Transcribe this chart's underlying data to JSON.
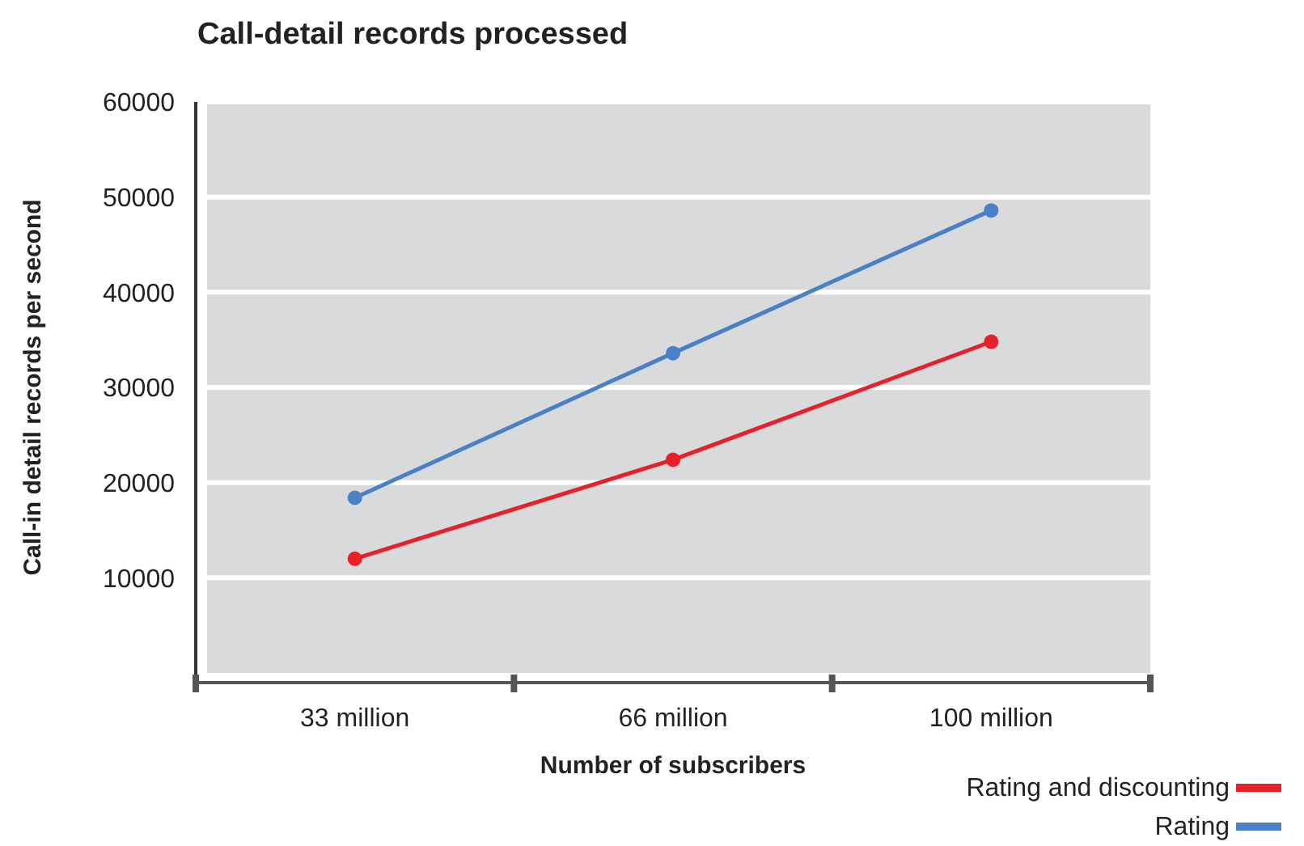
{
  "chart_data": {
    "type": "line",
    "title": "Call-detail records processed",
    "xlabel": "Number of subscribers",
    "ylabel": "Call-in detail records per second",
    "categories": [
      "33 million",
      "66 million",
      "100 million"
    ],
    "series": [
      {
        "name": "Rating and discounting",
        "color": "#e8202a",
        "values": [
          12000,
          22400,
          34800
        ]
      },
      {
        "name": "Rating",
        "color": "#4a80c8",
        "values": [
          18400,
          33600,
          48600
        ]
      }
    ],
    "ylim": [
      0,
      60000
    ],
    "yticks": [
      10000,
      20000,
      30000,
      40000,
      50000,
      60000
    ],
    "grid": "y",
    "legend": "bottom right",
    "marker": "circle",
    "line_style": "solid"
  }
}
